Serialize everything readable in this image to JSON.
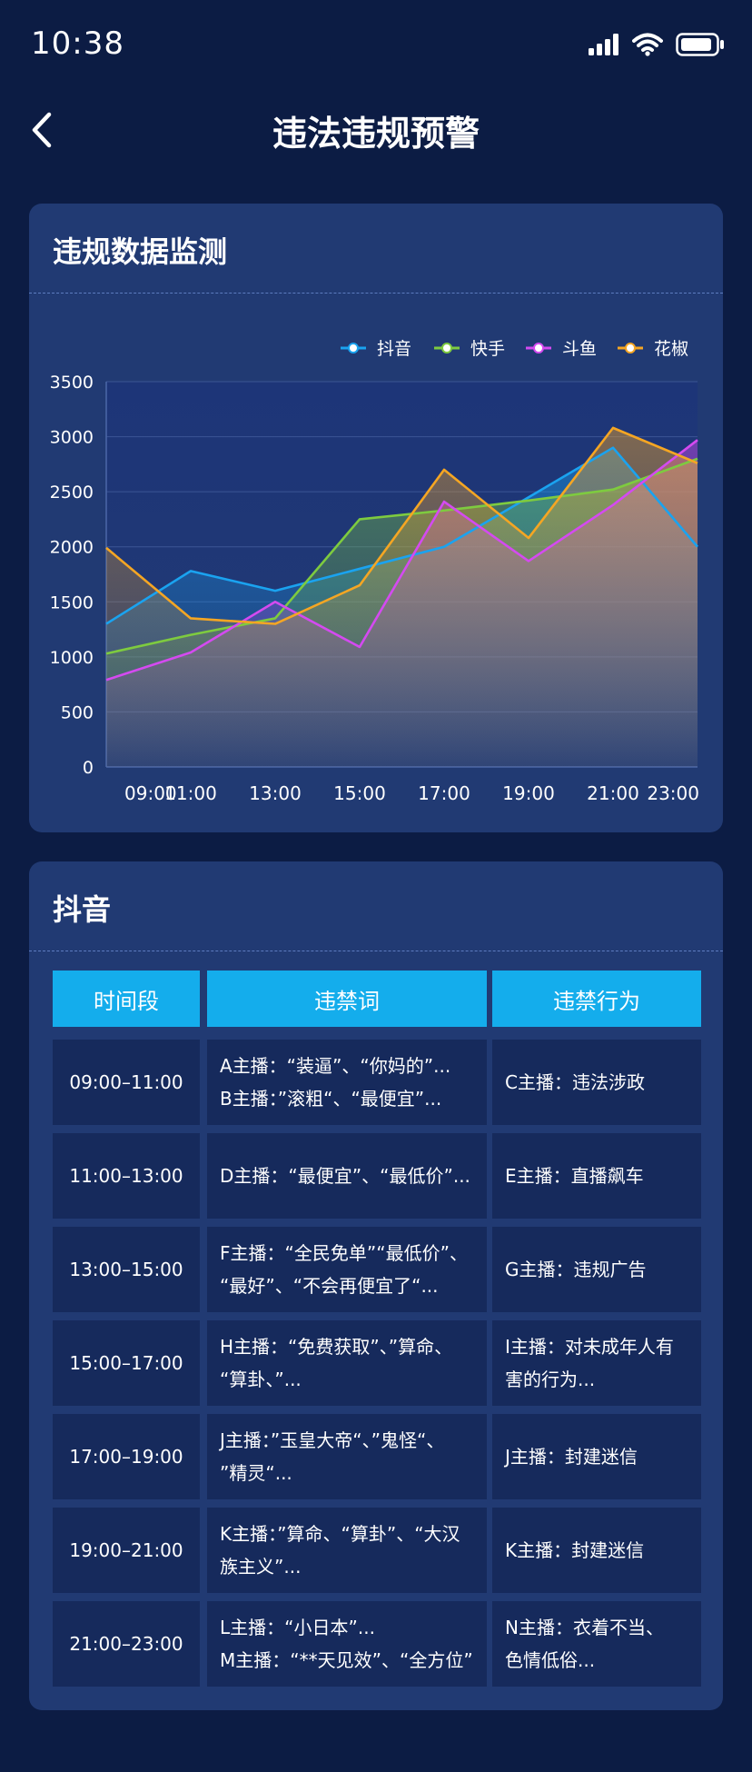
{
  "status_bar": {
    "time": "10:38"
  },
  "nav": {
    "title": "违法违规预警"
  },
  "chart_card": {
    "title": "违规数据监测"
  },
  "chart_data": {
    "type": "line",
    "x": [
      "09:00",
      "11:00",
      "13:00",
      "15:00",
      "17:00",
      "19:00",
      "21:00",
      "23:00"
    ],
    "ylim": [
      0,
      3500
    ],
    "yticks": [
      0,
      500,
      1000,
      1500,
      2000,
      2500,
      3000,
      3500
    ],
    "grid": true,
    "legend_position": "top-right",
    "series": [
      {
        "name": "抖音",
        "color": "#1aa3f0",
        "values": [
          1300,
          1780,
          1600,
          1800,
          2000,
          2450,
          2900,
          2000
        ]
      },
      {
        "name": "快手",
        "color": "#7ecb3f",
        "values": [
          1030,
          1200,
          1350,
          2250,
          2330,
          2420,
          2520,
          2800
        ]
      },
      {
        "name": "斗鱼",
        "color": "#d44af0",
        "values": [
          790,
          1040,
          1500,
          1090,
          2410,
          1870,
          2380,
          2970
        ]
      },
      {
        "name": "花椒",
        "color": "#f5a623",
        "values": [
          1990,
          1350,
          1300,
          1650,
          2700,
          2080,
          3080,
          2760
        ]
      }
    ]
  },
  "table_card": {
    "title": "抖音",
    "headers": [
      "时间段",
      "违禁词",
      "违禁行为"
    ],
    "rows": [
      {
        "period": "09:00–11:00",
        "words": "A主播：“装逼”、“你妈的”...\nB主播：”滚粗“、“最便宜”...",
        "behavior": "C主播：违法涉政"
      },
      {
        "period": "11:00–13:00",
        "words": "D主播：“最便宜”、“最低价”...",
        "behavior": "E主播：直播飙车"
      },
      {
        "period": "13:00–15:00",
        "words": "F主播：“全民免单”“最低价”、\n“最好”、“不会再便宜了“...",
        "behavior": "G主播：违规广告"
      },
      {
        "period": "15:00–17:00",
        "words": "H主播：“免费获取”、”算命、\n“算卦、”...",
        "behavior": "I主播：对未成年人有\n害的行为..."
      },
      {
        "period": "17:00–19:00",
        "words": "J主播：”玉皇大帝“、”鬼怪“、\n”精灵“...",
        "behavior": "J主播：封建迷信"
      },
      {
        "period": "19:00–21:00",
        "words": "K主播：”算命、“算卦”、“大汉\n族主义”...",
        "behavior": "K主播：封建迷信"
      },
      {
        "period": "21:00–23:00",
        "words": "L主播：“小日本”...\nM主播：“**天见效”、“全方位”",
        "behavior": "N主播：衣着不当、\n色情低俗..."
      }
    ]
  }
}
